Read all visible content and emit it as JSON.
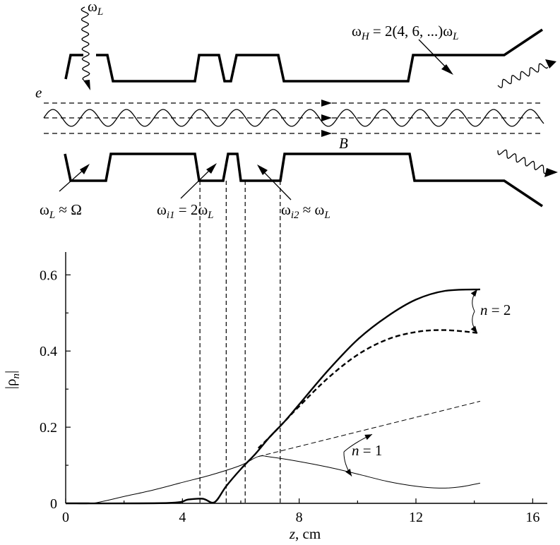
{
  "schematic": {
    "omega_L_top": {
      "main": "ω",
      "sub": "L"
    },
    "electron": "e",
    "B": "B",
    "omega_H": {
      "w1": "ω",
      "s1": "H",
      "mid": " = 2(4, 6, ...)ω",
      "s2": "L"
    },
    "omega_L_approx": {
      "w": "ω",
      "s": "L",
      "rest": " ≈ Ω"
    },
    "omega_i1": {
      "w1": "ω",
      "s1": "i1",
      "mid": " = 2ω",
      "s2": "L"
    },
    "omega_i2": {
      "w1": "ω",
      "s1": "i2",
      "mid": " ≈ ω",
      "s2": "L"
    }
  },
  "chart_data": {
    "type": "line",
    "title": "",
    "xlabel": {
      "var": "z",
      "unit": ", cm"
    },
    "ylabel": {
      "main": "|ρ",
      "sub": "n",
      "close": "|"
    },
    "xlim": [
      0,
      16.5
    ],
    "ylim": [
      0,
      0.66
    ],
    "xticks": [
      "0",
      "4",
      "8",
      "12",
      "16"
    ],
    "yticks": [
      "0",
      "0.2",
      "0.4",
      "0.6"
    ],
    "xtick_values": [
      0,
      4,
      8,
      12,
      16
    ],
    "ytick_values": [
      0,
      0.2,
      0.4,
      0.6
    ],
    "grid": false,
    "section_boundaries_z": [
      4.6,
      5.5,
      6.15,
      7.35
    ],
    "series": [
      {
        "style": "thick-solid",
        "x": [
          0,
          3.5,
          4.2,
          4.7,
          5.1,
          5.5,
          6.0,
          6.5,
          7.0,
          7.5,
          8,
          9,
          10,
          11,
          12,
          13,
          14.2
        ],
        "y": [
          0,
          0.001,
          0.01,
          0.012,
          0.003,
          0.045,
          0.09,
          0.13,
          0.175,
          0.215,
          0.26,
          0.35,
          0.43,
          0.49,
          0.535,
          0.558,
          0.562
        ]
      },
      {
        "style": "thick-dashed",
        "x": [
          6.6,
          7.0,
          7.5,
          8,
          9,
          10,
          11,
          12,
          13,
          14.2
        ],
        "y": [
          0.145,
          0.175,
          0.215,
          0.255,
          0.33,
          0.39,
          0.43,
          0.45,
          0.455,
          0.447
        ]
      },
      {
        "style": "thin-solid",
        "x": [
          0,
          0.9,
          2,
          3,
          4,
          5,
          6,
          6.6,
          7,
          8,
          9,
          10,
          11,
          12,
          12.8,
          13.5,
          14.2
        ],
        "y": [
          0,
          0,
          0.018,
          0.035,
          0.055,
          0.075,
          0.1,
          0.123,
          0.122,
          0.11,
          0.095,
          0.077,
          0.058,
          0.045,
          0.04,
          0.043,
          0.053
        ]
      },
      {
        "style": "thin-dashed",
        "x": [
          6.6,
          14.2
        ],
        "y": [
          0.123,
          0.268
        ]
      }
    ],
    "annotations": [
      {
        "label": {
          "var": "n",
          "rest": " = 2"
        },
        "points": [
          [
            14.2,
            0.562
          ],
          [
            14.2,
            0.447
          ]
        ]
      },
      {
        "label": {
          "var": "n",
          "rest": " = 1"
        },
        "points": [
          [
            10.5,
            0.185
          ],
          [
            9.8,
            0.075
          ]
        ]
      }
    ]
  }
}
